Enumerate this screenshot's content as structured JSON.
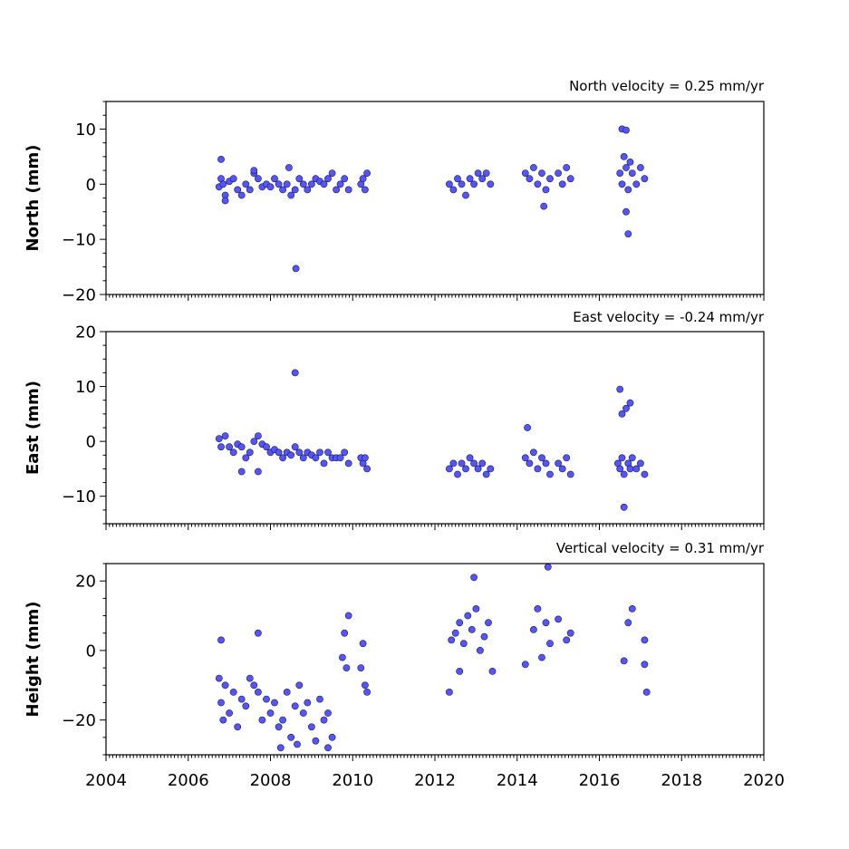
{
  "chart_data": [
    {
      "type": "scatter",
      "title": "North velocity = 0.25 mm/yr",
      "xlabel": "",
      "ylabel": "North (mm)",
      "xlim": [
        2004,
        2020
      ],
      "ylim": [
        -20,
        15
      ],
      "yticks": [
        -20,
        -10,
        0,
        10
      ],
      "yticks_labels": [
        "−20",
        "−10",
        "0",
        "10"
      ],
      "xticks_labels_shown": false,
      "point_color": "#5555ff",
      "series": [
        {
          "x": [
            2006.75,
            2006.8,
            2006.85,
            2006.9,
            2007.0,
            2007.1,
            2007.2,
            2007.3,
            2007.4,
            2007.5,
            2007.6,
            2007.7,
            2007.8,
            2007.9,
            2008.0,
            2008.1,
            2008.2,
            2008.3,
            2008.4,
            2008.5,
            2008.6,
            2008.7,
            2008.8,
            2008.9,
            2009.0,
            2009.1,
            2009.2,
            2009.3,
            2009.4,
            2009.5,
            2009.6,
            2009.7,
            2009.8,
            2009.9,
            2010.2,
            2010.25,
            2010.3,
            2010.35,
            2006.8,
            2006.9,
            2007.6,
            2008.45,
            2008.62,
            2012.35,
            2012.45,
            2012.55,
            2012.65,
            2012.75,
            2012.85,
            2012.95,
            2013.05,
            2013.15,
            2013.25,
            2013.35,
            2014.2,
            2014.3,
            2014.4,
            2014.5,
            2014.6,
            2014.7,
            2014.8,
            2015.0,
            2015.1,
            2015.2,
            2015.3,
            2016.5,
            2016.55,
            2016.6,
            2016.65,
            2016.7,
            2016.75,
            2016.8,
            2016.9,
            2017.0,
            2017.1,
            2016.55,
            2016.65,
            2016.65,
            2016.7,
            2014.65
          ],
          "y": [
            -0.5,
            1,
            0,
            -2,
            0.5,
            1,
            -1,
            -2,
            0,
            -1,
            2,
            1,
            -0.5,
            0,
            -0.5,
            1,
            0,
            -1,
            0,
            -2,
            -1,
            1,
            0,
            -1,
            0,
            1,
            0.5,
            0,
            1,
            2,
            -1,
            0,
            1,
            -1,
            0,
            1,
            -1,
            2,
            4.5,
            -3,
            2.5,
            3,
            -15.3,
            0,
            -1,
            1,
            0,
            -2,
            1,
            0,
            2,
            1,
            2,
            0,
            2,
            1,
            3,
            0,
            2,
            -1,
            1,
            2,
            0,
            3,
            1,
            2,
            0,
            5,
            3,
            -1,
            4,
            2,
            0,
            3,
            1,
            10,
            9.8,
            -5,
            -9,
            -4
          ]
        }
      ]
    },
    {
      "type": "scatter",
      "title": "East velocity = -0.24 mm/yr",
      "xlabel": "",
      "ylabel": "East (mm)",
      "xlim": [
        2004,
        2020
      ],
      "ylim": [
        -15,
        20
      ],
      "yticks": [
        -10,
        0,
        10,
        20
      ],
      "yticks_labels": [
        "−10",
        "0",
        "10",
        "20"
      ],
      "xticks_labels_shown": false,
      "point_color": "#5555ff",
      "series": [
        {
          "x": [
            2006.75,
            2006.8,
            2006.9,
            2007.0,
            2007.1,
            2007.2,
            2007.3,
            2007.4,
            2007.5,
            2007.6,
            2007.7,
            2007.8,
            2007.9,
            2008.0,
            2008.1,
            2008.2,
            2008.3,
            2008.4,
            2008.5,
            2008.6,
            2008.7,
            2008.8,
            2008.9,
            2009.0,
            2009.1,
            2009.2,
            2009.3,
            2009.4,
            2009.5,
            2009.6,
            2009.7,
            2009.8,
            2009.9,
            2010.2,
            2010.25,
            2010.3,
            2010.35,
            2007.3,
            2007.7,
            2008.6,
            2012.35,
            2012.45,
            2012.55,
            2012.65,
            2012.75,
            2012.85,
            2012.95,
            2013.05,
            2013.15,
            2013.25,
            2013.35,
            2014.2,
            2014.3,
            2014.4,
            2014.5,
            2014.6,
            2014.7,
            2014.8,
            2015.0,
            2015.1,
            2015.2,
            2015.3,
            2016.45,
            2016.5,
            2016.55,
            2016.6,
            2016.7,
            2016.75,
            2016.8,
            2016.9,
            2017.0,
            2017.1,
            2016.5,
            2016.55,
            2016.65,
            2016.75,
            2016.6,
            2014.25
          ],
          "y": [
            0.5,
            -1,
            1,
            -1,
            -2,
            -0.5,
            -1,
            -3,
            -2,
            0,
            1,
            -0.5,
            -1,
            -2,
            -1.5,
            -2,
            -3,
            -2,
            -2.5,
            -1,
            -2,
            -3,
            -2,
            -2.5,
            -3,
            -2,
            -4,
            -2,
            -3,
            -3,
            -3,
            -2,
            -4,
            -3,
            -4,
            -3,
            -5,
            -5.5,
            -5.5,
            12.5,
            -5,
            -4,
            -6,
            -4,
            -5,
            -3,
            -4,
            -5,
            -4,
            -6,
            -5,
            -3,
            -4,
            -2,
            -5,
            -3,
            -4,
            -6,
            -4,
            -5,
            -3,
            -6,
            -4,
            -5,
            -3,
            -6,
            -4,
            -5,
            -3,
            -5,
            -4,
            -6,
            9.5,
            5,
            6,
            7,
            -12,
            2.5
          ]
        }
      ]
    },
    {
      "type": "scatter",
      "title": "Vertical velocity = 0.31 mm/yr",
      "xlabel": "",
      "ylabel": "Height (mm)",
      "xlim": [
        2004,
        2020
      ],
      "ylim": [
        -30,
        25
      ],
      "yticks": [
        -20,
        0,
        20
      ],
      "yticks_labels": [
        "−20",
        "0",
        "20"
      ],
      "xticks": [
        2004,
        2006,
        2008,
        2010,
        2012,
        2014,
        2016,
        2018,
        2020
      ],
      "xticks_labels": [
        "2004",
        "2006",
        "2008",
        "2010",
        "2012",
        "2014",
        "2016",
        "2018",
        "2020"
      ],
      "point_color": "#5555ff",
      "series": [
        {
          "x": [
            2006.75,
            2006.8,
            2006.85,
            2006.9,
            2007.0,
            2007.1,
            2007.2,
            2007.3,
            2007.4,
            2007.5,
            2007.6,
            2007.7,
            2007.8,
            2007.9,
            2008.0,
            2008.1,
            2008.2,
            2008.3,
            2008.4,
            2008.5,
            2008.6,
            2008.7,
            2008.8,
            2008.9,
            2009.0,
            2009.1,
            2009.2,
            2009.3,
            2009.4,
            2009.5,
            2009.75,
            2009.8,
            2009.85,
            2009.9,
            2010.2,
            2010.25,
            2010.3,
            2010.35,
            2006.8,
            2007.7,
            2008.25,
            2008.65,
            2009.4,
            2012.35,
            2012.4,
            2012.5,
            2012.6,
            2012.7,
            2012.8,
            2012.9,
            2013.0,
            2013.1,
            2013.2,
            2013.3,
            2013.4,
            2012.95,
            2014.2,
            2014.4,
            2014.5,
            2014.6,
            2014.7,
            2014.8,
            2015.0,
            2015.2,
            2015.3,
            2016.6,
            2016.7,
            2016.8,
            2017.1,
            2017.15,
            2014.75,
            2012.6,
            2017.1
          ],
          "y": [
            -8,
            -15,
            -20,
            -10,
            -18,
            -12,
            -22,
            -14,
            -16,
            -8,
            -10,
            -12,
            -20,
            -14,
            -18,
            -15,
            -22,
            -20,
            -12,
            -25,
            -16,
            -10,
            -18,
            -15,
            -22,
            -26,
            -14,
            -20,
            -18,
            -25,
            -2,
            5,
            -5,
            10,
            -5,
            2,
            -10,
            -12,
            3,
            5,
            -28,
            -27,
            -28,
            -12,
            3,
            5,
            8,
            2,
            10,
            6,
            12,
            0,
            4,
            8,
            -6,
            21,
            -4,
            6,
            12,
            -2,
            8,
            2,
            9,
            3,
            5,
            -3,
            8,
            12,
            3,
            -12,
            24,
            -6,
            -4
          ]
        }
      ]
    }
  ]
}
